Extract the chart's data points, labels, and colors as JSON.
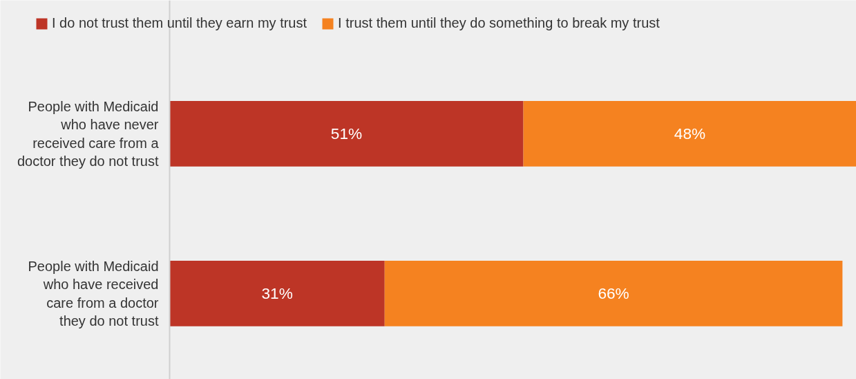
{
  "chart_data": {
    "type": "bar",
    "orientation": "horizontal",
    "stacked": true,
    "legend": "top",
    "grid": false,
    "tick_labels": "y",
    "categories": [
      "People with Medicaid\nwho have never\nreceived care from a\ndoctor they do not trust",
      "People with Medicaid\nwho have received\ncare from a doctor\nthey do not trust"
    ],
    "series": [
      {
        "name": "I do not trust them until they earn my trust",
        "color": "#bd3526",
        "values": [
          51,
          31
        ],
        "value_labels": [
          "51%",
          "31%"
        ]
      },
      {
        "name": "I trust them until they do something to break my trust",
        "color": "#f58220",
        "values": [
          48,
          66
        ],
        "value_labels": [
          "48%",
          "66%"
        ]
      }
    ]
  }
}
